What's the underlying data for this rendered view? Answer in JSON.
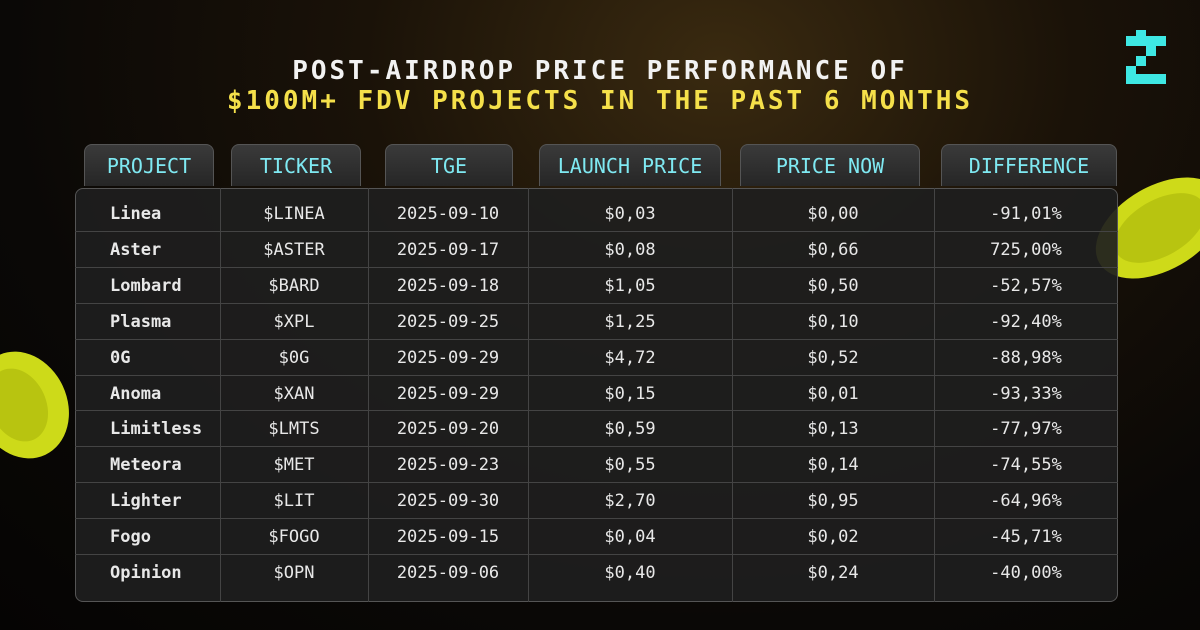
{
  "header": {
    "title_line1": "POST-AIRDROP PRICE PERFORMANCE OF",
    "title_line2": "$100M+ FDV PROJECTS IN THE PAST 6 MONTHS"
  },
  "table": {
    "columns": [
      "PROJECT",
      "TICKER",
      "TGE",
      "LAUNCH PRICE",
      "PRICE NOW",
      "DIFFERENCE"
    ],
    "rows": [
      [
        "Linea",
        "$LINEA",
        "2025-09-10",
        "$0,03",
        "$0,00",
        "-91,01%"
      ],
      [
        "Aster",
        "$ASTER",
        "2025-09-17",
        "$0,08",
        "$0,66",
        "725,00%"
      ],
      [
        "Lombard",
        "$BARD",
        "2025-09-18",
        "$1,05",
        "$0,50",
        "-52,57%"
      ],
      [
        "Plasma",
        "$XPL",
        "2025-09-25",
        "$1,25",
        "$0,10",
        "-92,40%"
      ],
      [
        "0G",
        "$0G",
        "2025-09-29",
        "$4,72",
        "$0,52",
        "-88,98%"
      ],
      [
        "Anoma",
        "$XAN",
        "2025-09-29",
        "$0,15",
        "$0,01",
        "-93,33%"
      ],
      [
        "Limitless",
        "$LMTS",
        "2025-09-20",
        "$0,59",
        "$0,13",
        "-77,97%"
      ],
      [
        "Meteora",
        "$MET",
        "2025-09-23",
        "$0,55",
        "$0,14",
        "-74,55%"
      ],
      [
        "Lighter",
        "$LIT",
        "2025-09-30",
        "$2,70",
        "$0,95",
        "-64,96%"
      ],
      [
        "Fogo",
        "$FOGO",
        "2025-09-15",
        "$0,04",
        "$0,02",
        "-45,71%"
      ],
      [
        "Opinion",
        "$OPN",
        "2025-09-06",
        "$0,40",
        "$0,24",
        "-40,00%"
      ]
    ]
  }
}
